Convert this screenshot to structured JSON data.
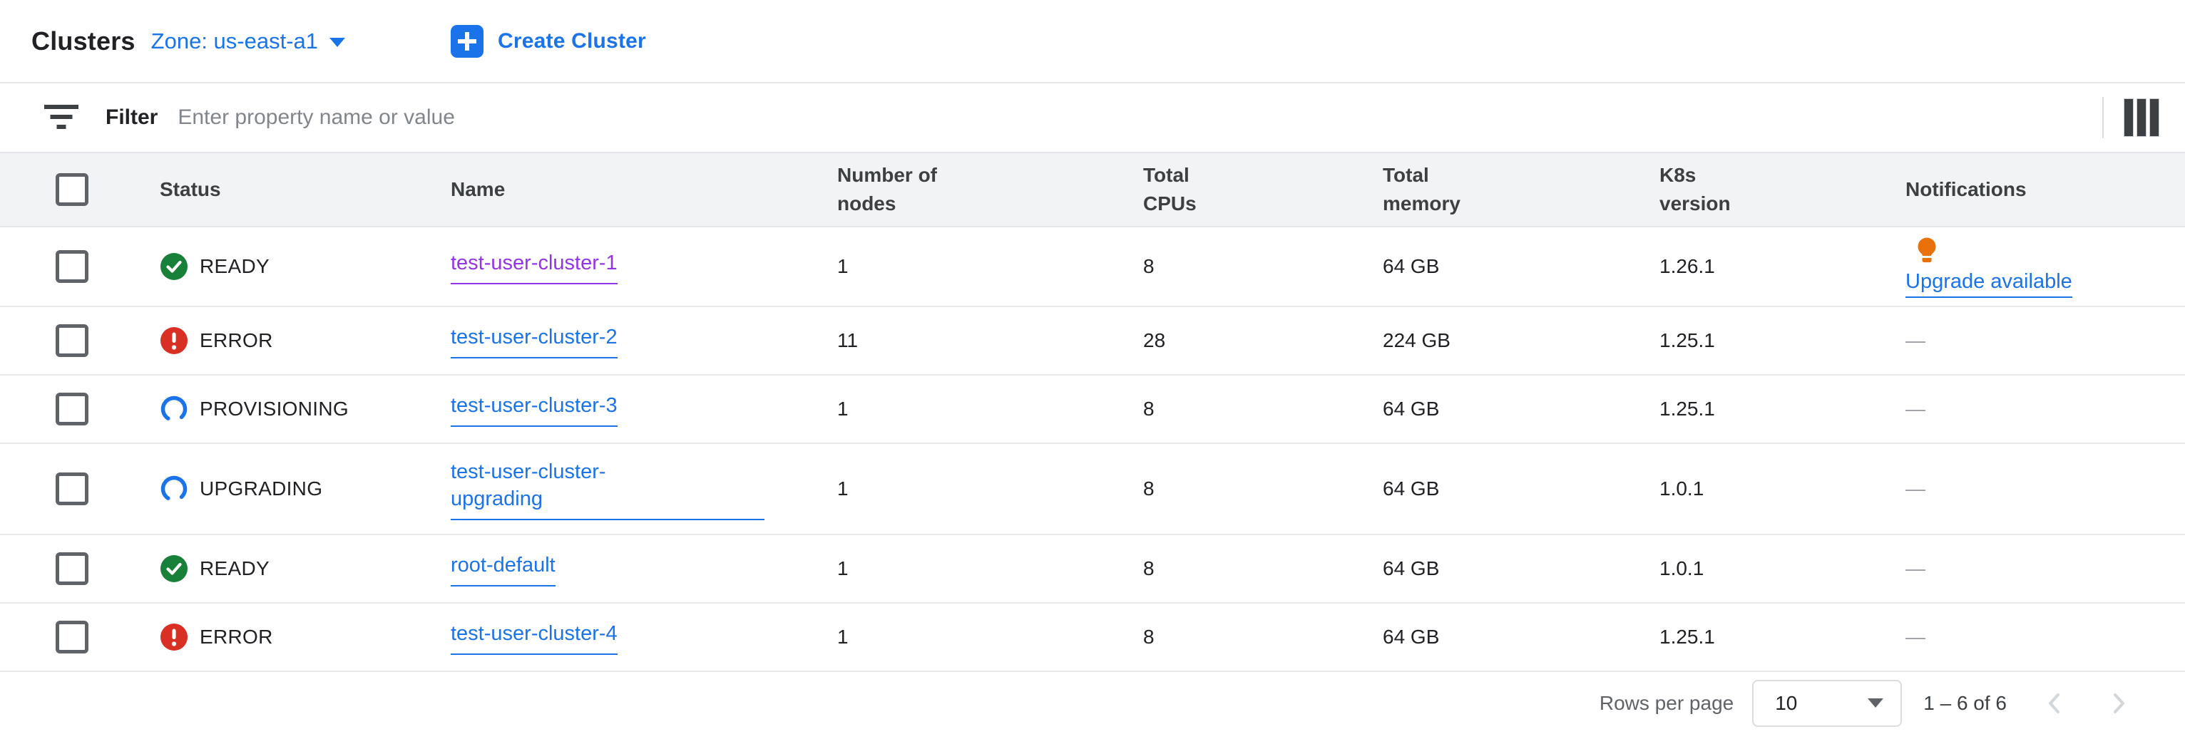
{
  "header": {
    "title": "Clusters",
    "zone_label": "Zone: us-east-a1",
    "create_button_label": "Create Cluster"
  },
  "toolbar": {
    "filter_label": "Filter",
    "filter_placeholder": "Enter property name or value",
    "filter_value": ""
  },
  "table": {
    "columns": [
      "Status",
      "Name",
      "Number of nodes",
      "Total CPUs",
      "Total memory",
      "K8s version",
      "Notifications"
    ],
    "rows": [
      {
        "status": "READY",
        "status_icon": "check-circle-icon",
        "name": "test-user-cluster-1",
        "visited": true,
        "nodes": "1",
        "cpus": "8",
        "memory": "64 GB",
        "k8s_version": "1.26.1",
        "notification": "Upgrade available",
        "notification_icon": "lightbulb-icon"
      },
      {
        "status": "ERROR",
        "status_icon": "error-circle-icon",
        "name": "test-user-cluster-2",
        "visited": false,
        "nodes": "11",
        "cpus": "28",
        "memory": "224 GB",
        "k8s_version": "1.25.1",
        "notification": "—"
      },
      {
        "status": "PROVISIONING",
        "status_icon": "spinner-icon",
        "name": "test-user-cluster-3",
        "visited": false,
        "nodes": "1",
        "cpus": "8",
        "memory": "64 GB",
        "k8s_version": "1.25.1",
        "notification": "—"
      },
      {
        "status": "UPGRADING",
        "status_icon": "spinner-icon",
        "name": "test-user-cluster-upgrading",
        "visited": false,
        "nodes": "1",
        "cpus": "8",
        "memory": "64 GB",
        "k8s_version": "1.0.1",
        "notification": "—"
      },
      {
        "status": "READY",
        "status_icon": "check-circle-icon",
        "name": "root-default",
        "visited": false,
        "nodes": "1",
        "cpus": "8",
        "memory": "64 GB",
        "k8s_version": "1.0.1",
        "notification": "—"
      },
      {
        "status": "ERROR",
        "status_icon": "error-circle-icon",
        "name": "test-user-cluster-4",
        "visited": false,
        "nodes": "1",
        "cpus": "8",
        "memory": "64 GB",
        "k8s_version": "1.25.1",
        "notification": "—"
      }
    ]
  },
  "footer": {
    "rows_per_page_label": "Rows per page",
    "rows_per_page_value": "10",
    "range_label": "1 – 6 of 6"
  },
  "colors": {
    "accent_blue": "#1a73e8",
    "visited_purple": "#9334e6",
    "status_green": "#188038",
    "status_red": "#d93025",
    "bulb_orange": "#e8710a",
    "header_bg": "#f1f3f4"
  }
}
